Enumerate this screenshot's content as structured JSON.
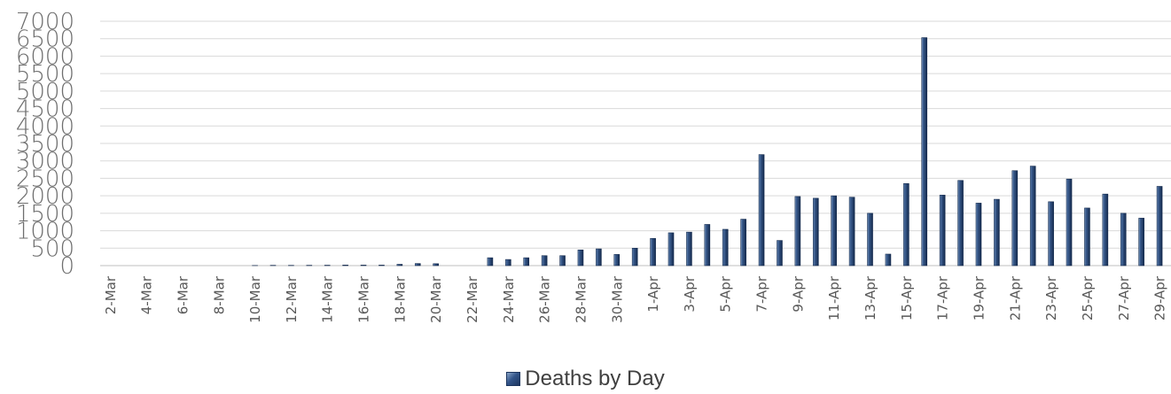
{
  "chart_data": {
    "type": "bar",
    "categories": [
      "2-Mar",
      "3-Mar",
      "4-Mar",
      "5-Mar",
      "6-Mar",
      "7-Mar",
      "8-Mar",
      "9-Mar",
      "10-Mar",
      "11-Mar",
      "12-Mar",
      "13-Mar",
      "14-Mar",
      "15-Mar",
      "16-Mar",
      "17-Mar",
      "18-Mar",
      "19-Mar",
      "20-Mar",
      "21-Mar",
      "22-Mar",
      "23-Mar",
      "24-Mar",
      "25-Mar",
      "26-Mar",
      "27-Mar",
      "28-Mar",
      "29-Mar",
      "30-Mar",
      "31-Mar",
      "1-Apr",
      "2-Apr",
      "3-Apr",
      "4-Apr",
      "5-Apr",
      "6-Apr",
      "7-Apr",
      "8-Apr",
      "9-Apr",
      "10-Apr",
      "11-Apr",
      "12-Apr",
      "13-Apr",
      "14-Apr",
      "15-Apr",
      "16-Apr",
      "17-Apr",
      "18-Apr",
      "19-Apr",
      "20-Apr",
      "21-Apr",
      "22-Apr",
      "23-Apr",
      "24-Apr",
      "25-Apr",
      "26-Apr",
      "27-Apr",
      "28-Apr",
      "29-Apr"
    ],
    "tick_labels": [
      "2-Mar",
      "4-Mar",
      "6-Mar",
      "8-Mar",
      "10-Mar",
      "12-Mar",
      "14-Mar",
      "16-Mar",
      "18-Mar",
      "20-Mar",
      "22-Mar",
      "24-Mar",
      "26-Mar",
      "28-Mar",
      "30-Mar",
      "1-Apr",
      "3-Apr",
      "5-Apr",
      "7-Apr",
      "9-Apr",
      "11-Apr",
      "13-Apr",
      "15-Apr",
      "17-Apr",
      "19-Apr",
      "21-Apr",
      "23-Apr",
      "25-Apr",
      "27-Apr",
      "29-Apr"
    ],
    "series": [
      {
        "name": "Deaths by Day",
        "values": [
          0,
          0,
          0,
          0,
          0,
          0,
          0,
          0,
          4,
          9,
          8,
          10,
          12,
          16,
          15,
          15,
          38,
          60,
          55,
          0,
          0,
          225,
          175,
          225,
          285,
          285,
          450,
          480,
          320,
          500,
          780,
          940,
          960,
          1180,
          1040,
          1330,
          3180,
          720,
          1980,
          1930,
          2000,
          1960,
          1500,
          330,
          2350,
          6530,
          2020,
          2440,
          1790,
          1900,
          2720,
          2850,
          1830,
          2480,
          1650,
          2050,
          1500,
          1360,
          2270
        ]
      }
    ],
    "title": "",
    "xlabel": "",
    "ylabel": "",
    "ylim": [
      0,
      7000
    ],
    "yticks": [
      "0",
      "500",
      "1000",
      "1500",
      "2000",
      "2500",
      "3000",
      "3500",
      "4000",
      "4500",
      "5000",
      "5500",
      "6000",
      "6500",
      "7000"
    ],
    "grid": true,
    "legend_position": "bottom",
    "colors": {
      "bar": "#1f3a63",
      "bar_light": "#5b7fae",
      "grid": "#d9d9d9",
      "axis": "#bfbfbf"
    }
  }
}
